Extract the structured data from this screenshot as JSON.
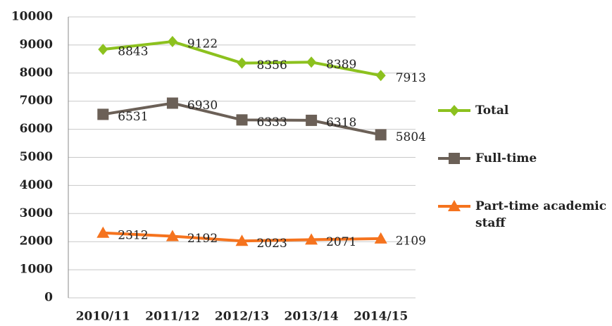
{
  "chart_data": {
    "type": "line",
    "categories": [
      "2010/11",
      "2011/12",
      "2012/13",
      "2013/14",
      "2014/15"
    ],
    "series": [
      {
        "name": "Total",
        "color": "#8cc11e",
        "marker": "diamond",
        "values": [
          8843,
          9122,
          8356,
          8389,
          7913
        ]
      },
      {
        "name": "Full-time",
        "color": "#6b6057",
        "marker": "square",
        "values": [
          6531,
          6930,
          6333,
          6318,
          5804
        ]
      },
      {
        "name": "Part-time academic staff",
        "color": "#f5731e",
        "marker": "triangle",
        "values": [
          2312,
          2192,
          2023,
          2071,
          2109
        ]
      }
    ],
    "ylim": [
      0,
      10000
    ],
    "yticks": [
      0,
      1000,
      2000,
      3000,
      4000,
      5000,
      6000,
      7000,
      8000,
      9000,
      10000
    ],
    "grid": true,
    "legend": "right"
  }
}
